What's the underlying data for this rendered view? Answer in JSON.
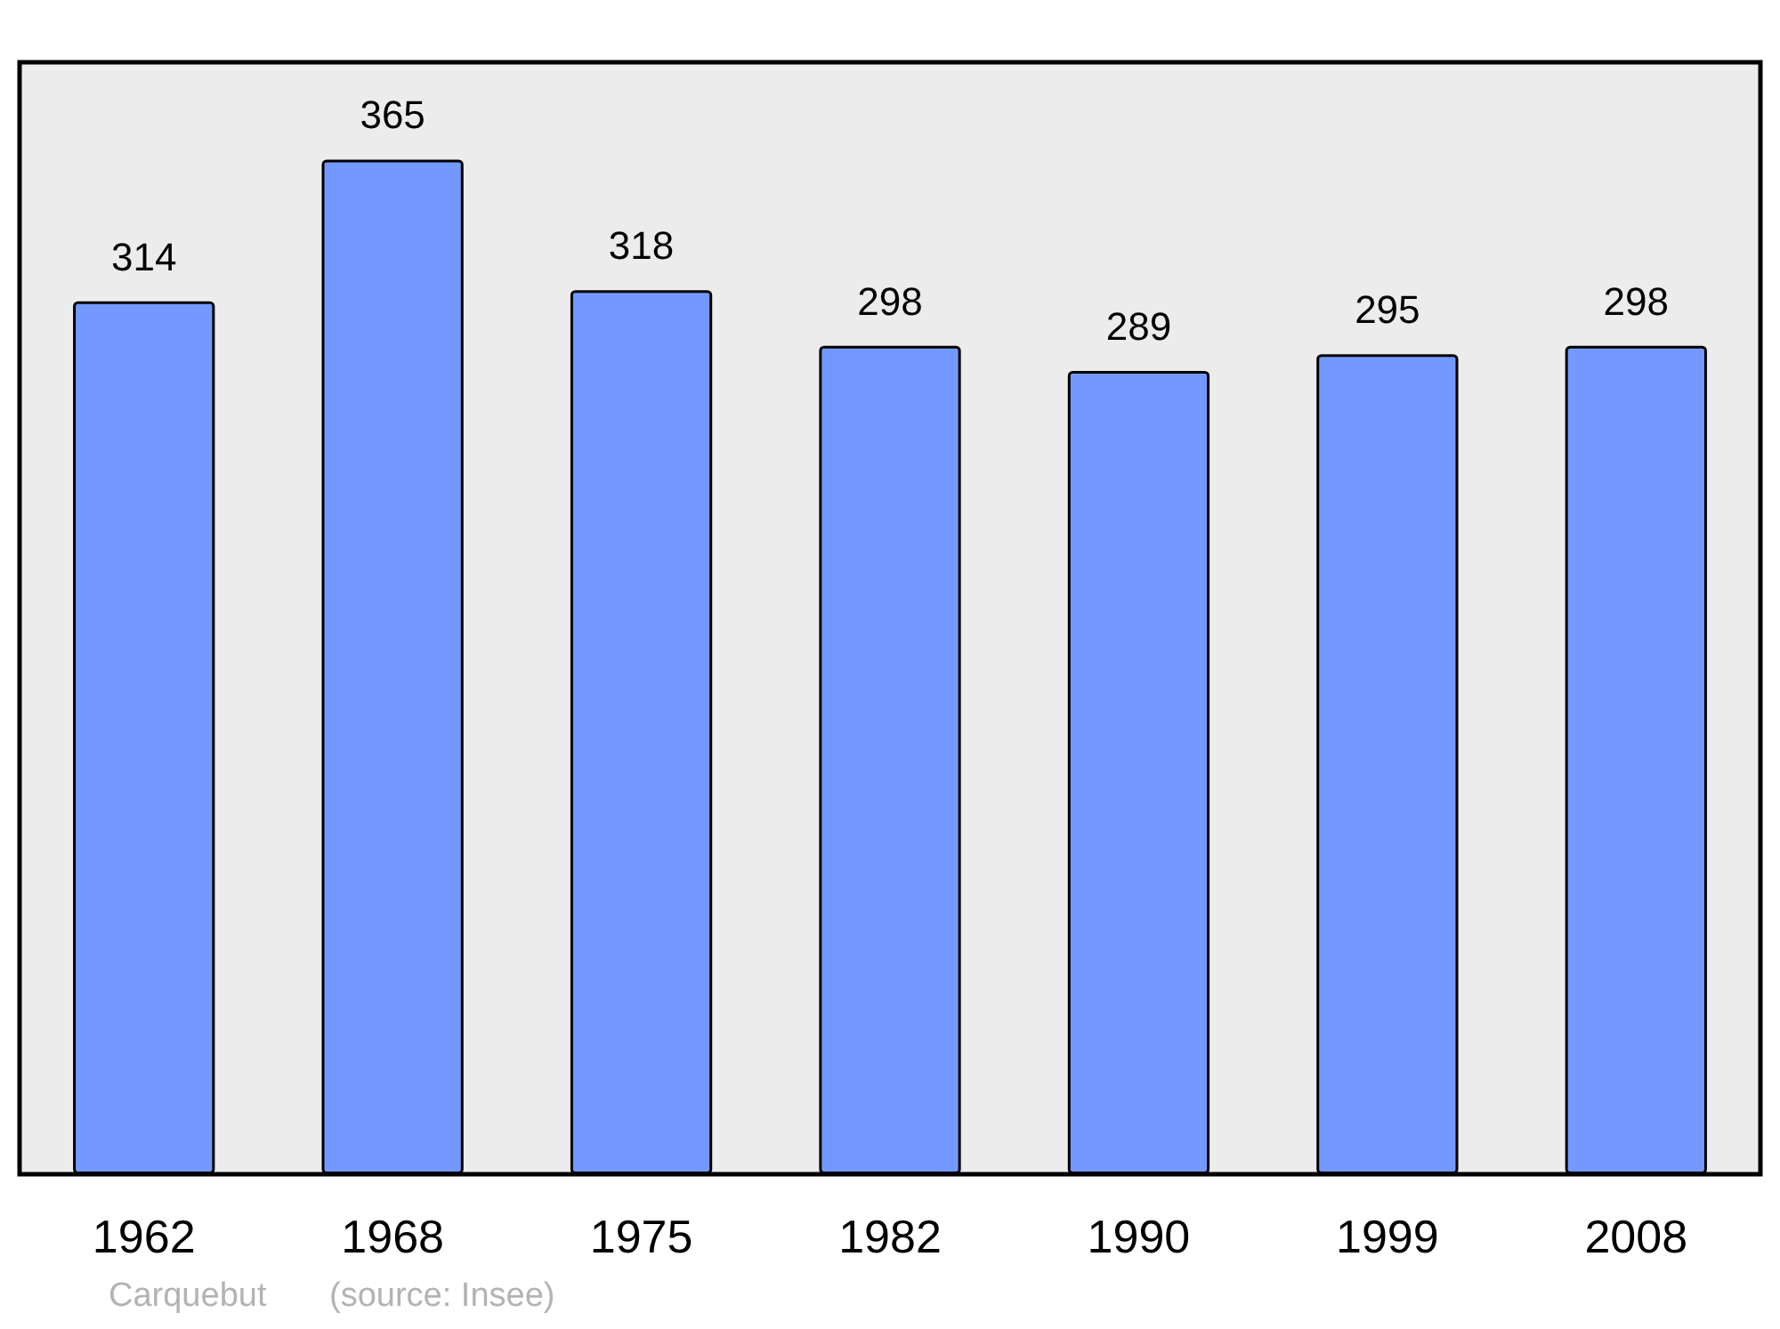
{
  "chart_data": {
    "type": "bar",
    "categories": [
      "1962",
      "1968",
      "1975",
      "1982",
      "1990",
      "1999",
      "2008"
    ],
    "values": [
      314,
      365,
      318,
      298,
      289,
      295,
      298
    ],
    "color": "#7399ff",
    "data_labels": true,
    "annotations": [
      "Carquebut",
      "(source: Insee)"
    ]
  }
}
